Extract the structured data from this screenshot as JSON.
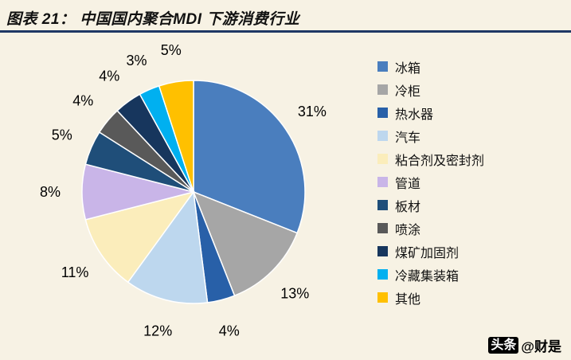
{
  "title": {
    "text": "图表 21： 中国国内聚合MDI 下游消费行业"
  },
  "watermark": {
    "badge": "头条",
    "handle": "@财是"
  },
  "colors": {
    "background": "#F7F2E4",
    "title_rule": "#1F3864",
    "label_text": "#000000"
  },
  "chart_data": {
    "type": "pie",
    "title": "中国国内聚合MDI下游消费行业",
    "unit": "%",
    "direction": "clockwise",
    "start_angle_deg": 0,
    "legend_position": "right",
    "categories": [
      "冰箱",
      "冷柜",
      "热水器",
      "汽车",
      "粘合剂及密封剂",
      "管道",
      "板材",
      "喷涂",
      "煤矿加固剂",
      "冷藏集装箱",
      "其他"
    ],
    "values": [
      31,
      13,
      4,
      12,
      11,
      8,
      5,
      4,
      4,
      3,
      5
    ],
    "labels": [
      "31%",
      "13%",
      "4%",
      "12%",
      "11%",
      "8%",
      "5%",
      "4%",
      "4%",
      "3%",
      "5%"
    ],
    "slice_colors": [
      "#4A7EBE",
      "#A6A6A6",
      "#2860A8",
      "#BDD7EE",
      "#FBEDBB",
      "#C9B5E8",
      "#1F4E79",
      "#595959",
      "#17365D",
      "#00B0F0",
      "#FFC000"
    ]
  }
}
